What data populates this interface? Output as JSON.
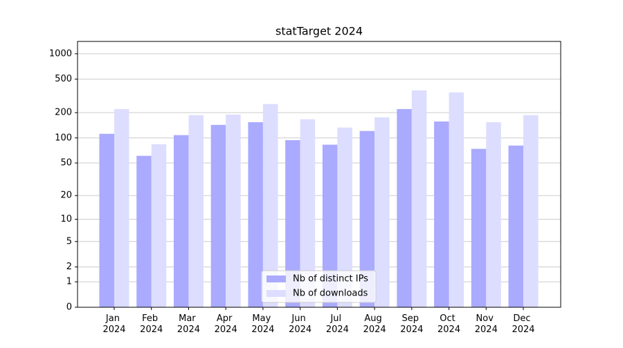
{
  "chart_data": {
    "type": "bar",
    "title": "statTarget 2024",
    "categories": [
      "Jan 2024",
      "Feb 2024",
      "Mar 2024",
      "Apr 2024",
      "May 2024",
      "Jun 2024",
      "Jul 2024",
      "Aug 2024",
      "Sep 2024",
      "Oct 2024",
      "Nov 2024",
      "Dec 2024"
    ],
    "series": [
      {
        "name": "Nb of distinct IPs",
        "color": "#aaaaff",
        "values": [
          112,
          61,
          108,
          143,
          154,
          94,
          83,
          121,
          221,
          157,
          74,
          81
        ]
      },
      {
        "name": "Nb of downloads",
        "color": "#ddddff",
        "values": [
          221,
          84,
          187,
          190,
          253,
          167,
          133,
          176,
          368,
          348,
          154,
          187
        ]
      }
    ],
    "yscale": "log1p",
    "ylim": [
      0,
      1400
    ],
    "yticks": [
      0,
      1,
      2,
      5,
      10,
      20,
      50,
      100,
      200,
      500,
      1000
    ],
    "grid": true,
    "legend": "lower center"
  }
}
